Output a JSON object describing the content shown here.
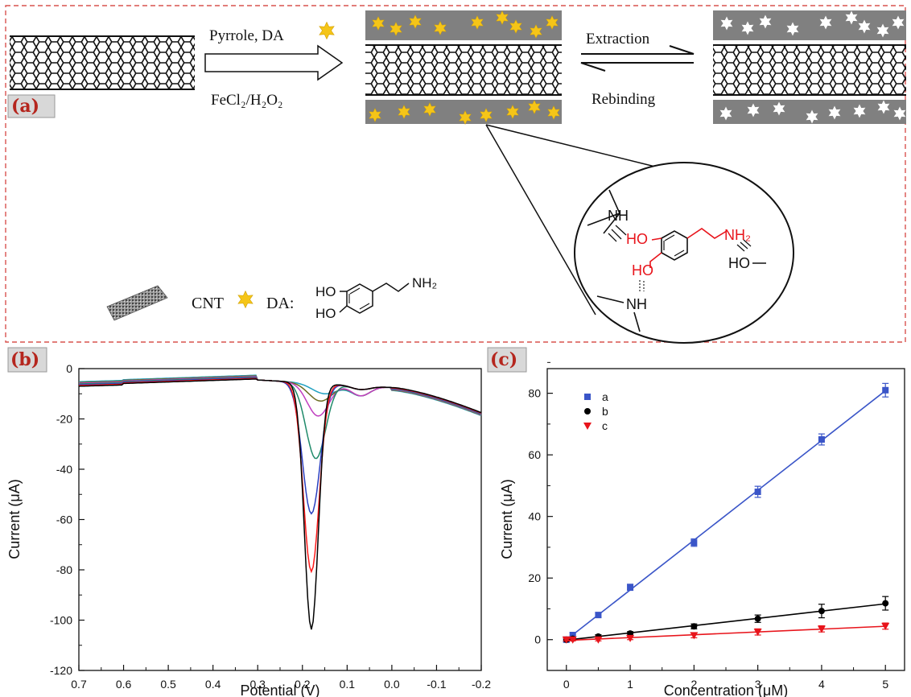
{
  "panel_a": {
    "label": "(a)",
    "reaction_top": "Pyrrole,  DA",
    "reaction_bottom": "FeCl₂/H₂O₂",
    "extraction": "Extraction",
    "rebinding": "Rebinding",
    "legend_cnt": "CNT",
    "legend_da": "DA:",
    "da_structure": {
      "ho_top": "HO",
      "ho_bottom": "HO",
      "nh2": "NH₂"
    },
    "zoom": {
      "nh_top": "NH",
      "nh_bottom": "NH",
      "ho1": "HO",
      "ho2": "HO",
      "nh2": "NH₂",
      "ho_right": "HO"
    },
    "colors": {
      "dopamine": "#f5c518",
      "polymer": "#808080",
      "highlight": "#e8141b",
      "border": "#d9534f"
    }
  },
  "panel_b": {
    "label": "(b)",
    "chart_data": {
      "type": "line",
      "xlabel": "Potential (V)",
      "ylabel": "Current (μA)",
      "xlim": [
        0.7,
        -0.2
      ],
      "ylim": [
        -120,
        0
      ],
      "xticks": [
        "0.7",
        "0.6",
        "0.5",
        "0.4",
        "0.3",
        "0.2",
        "0.1",
        "0.0",
        "-0.1",
        "-0.2"
      ],
      "yticks": [
        "0",
        "-20",
        "-40",
        "-60",
        "-80",
        "-100",
        "-120"
      ],
      "series": [
        {
          "color": "#000000",
          "peak_x": 0.18,
          "peak_y": -103
        },
        {
          "color": "#ff1a1a",
          "peak_x": 0.18,
          "peak_y": -80
        },
        {
          "color": "#2b3fbf",
          "peak_x": 0.18,
          "peak_y": -57
        },
        {
          "color": "#1f8a6a",
          "peak_x": 0.17,
          "peak_y": -35
        },
        {
          "color": "#c040c0",
          "peak_x": 0.165,
          "peak_y": -18
        },
        {
          "color": "#6b6b20",
          "peak_x": 0.16,
          "peak_y": -12
        },
        {
          "color": "#20a0c0",
          "peak_x": 0.15,
          "peak_y": -9
        }
      ]
    }
  },
  "panel_c": {
    "label": "(c)",
    "chart_data": {
      "type": "scatter",
      "xlabel": "Concentration (μM)",
      "ylabel": "Current (μA)",
      "xlim": [
        -0.3,
        5.3
      ],
      "ylim": [
        -10,
        88
      ],
      "xticks": [
        "0",
        "1",
        "2",
        "3",
        "4",
        "5"
      ],
      "yticks": [
        "0",
        "20",
        "40",
        "60",
        "80"
      ],
      "x": [
        0,
        0.1,
        0.5,
        1,
        2,
        3,
        4,
        5
      ],
      "series": [
        {
          "name": "a",
          "color": "#3a55c8",
          "marker": "square",
          "values": [
            0,
            1.5,
            8,
            17,
            31.5,
            48,
            65,
            81
          ],
          "errors": [
            0.8,
            0.8,
            0.8,
            1,
            1.2,
            1.8,
            1.8,
            2.2
          ]
        },
        {
          "name": "b",
          "color": "#000000",
          "marker": "circle",
          "values": [
            0,
            0.3,
            1,
            2,
            4.3,
            6.8,
            9.3,
            11.8
          ],
          "errors": [
            0.5,
            0.5,
            0.6,
            0.6,
            0.8,
            1.2,
            2.2,
            2.2
          ]
        },
        {
          "name": "c",
          "color": "#e8141b",
          "marker": "triangle",
          "values": [
            0,
            0,
            0,
            0.5,
            1.4,
            2.5,
            3.5,
            4.4
          ],
          "errors": [
            0.4,
            0.4,
            0.4,
            0.5,
            0.8,
            1,
            1,
            1
          ]
        }
      ]
    }
  }
}
